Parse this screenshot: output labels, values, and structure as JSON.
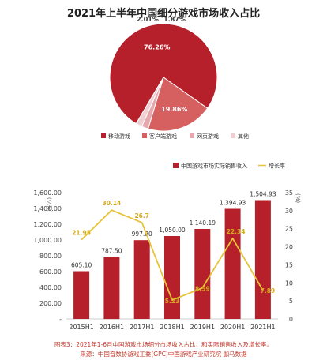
{
  "chart_data": [
    {
      "type": "pie",
      "title": "2021年上半年中国细分游戏市场收入占比",
      "categories": [
        "移动游戏",
        "客户端游戏",
        "网页游戏",
        "其他"
      ],
      "values": [
        76.26,
        19.86,
        2.01,
        1.87
      ],
      "labels": [
        "76.26%",
        "19.86%",
        "2.01%",
        "1.87%"
      ],
      "colors": [
        "#b5202a",
        "#d66060",
        "#e5a9ad",
        "#f0cfd2"
      ],
      "legend_position": "bottom"
    },
    {
      "type": "bar",
      "categories": [
        "2015H1",
        "2016H1",
        "2017H1",
        "2018H1",
        "2019H1",
        "2020H1",
        "2021H1"
      ],
      "series": [
        {
          "name": "中国游戏市场实际销售收入",
          "type": "bar",
          "values": [
            605.1,
            787.5,
            997.8,
            1050.0,
            1140.19,
            1394.93,
            1504.93
          ],
          "labels": [
            "605.10",
            "787.50",
            "997.80",
            "1,050.00",
            "1,140.19",
            "1,394.93",
            "1,504.93"
          ],
          "color": "#b5202a",
          "axis": "left"
        },
        {
          "name": "增长率",
          "type": "line",
          "values": [
            21.95,
            30.14,
            26.7,
            5.23,
            8.59,
            22.34,
            7.89
          ],
          "labels": [
            "21.95",
            "30.14",
            "26.7",
            "5.23",
            "8.59",
            "22.34",
            "7.89"
          ],
          "color": "#e8c33a",
          "axis": "right"
        }
      ],
      "ylabel": "(亿元)",
      "ylabel_right": "(%)",
      "ylim": [
        0,
        1600
      ],
      "ylim_right": [
        0,
        35
      ],
      "yticks": [
        "-",
        "200.00",
        "400.00",
        "600.00",
        "800.00",
        "1,000.00",
        "1,200.00",
        "1,400.00",
        "1,600.00"
      ],
      "yticks_right": [
        "0",
        "5",
        "10",
        "15",
        "20",
        "25",
        "30",
        "35"
      ],
      "legend_position": "top-right",
      "grid": false
    }
  ],
  "captions": {
    "figure": "图表3：2021年1-6月中国游戏市场细分市场收入占比，和实际销售收入及增长率。",
    "source": "来源：中国音数协游戏工委(GPC)中国游戏产业研究院  伽马数据"
  }
}
